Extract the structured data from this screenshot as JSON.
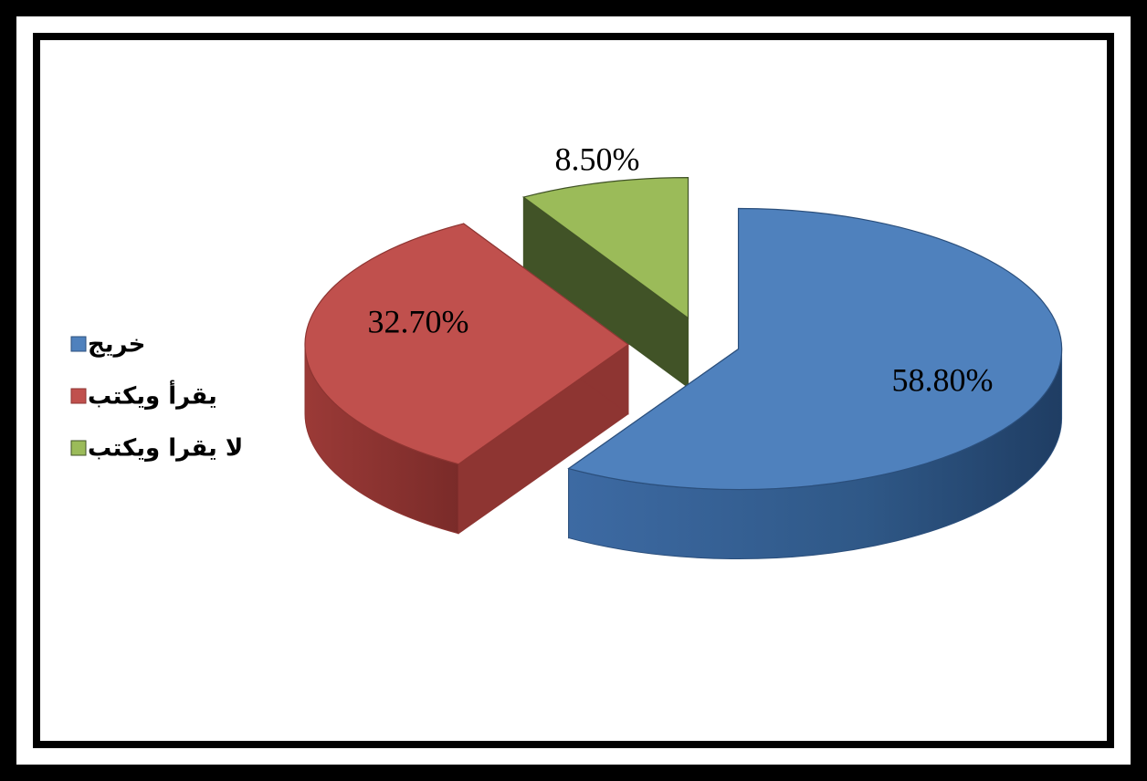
{
  "chart_data": {
    "type": "pie",
    "categories": [
      "خريج",
      "يقرأ ويكتب",
      "لا يقرا ويكتب"
    ],
    "values": [
      58.8,
      32.7,
      8.5
    ],
    "labels": [
      "58.80%",
      "32.70%",
      "8.50%"
    ],
    "colors": [
      "#4F81BD",
      "#C0504D",
      "#9BBB59"
    ],
    "legend_position": "left",
    "exploded": true
  }
}
